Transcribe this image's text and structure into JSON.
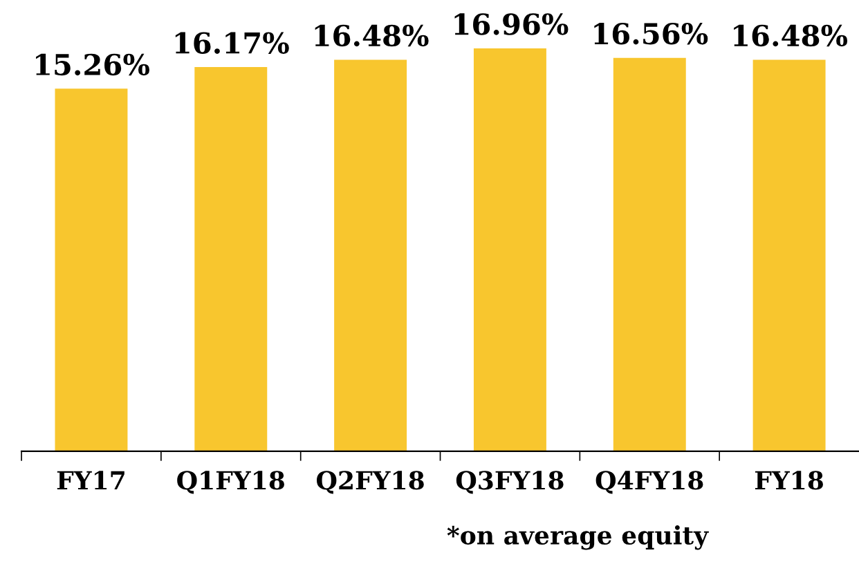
{
  "chart_data": {
    "type": "bar",
    "categories": [
      "FY17",
      "Q1FY18",
      "Q2FY18",
      "Q3FY18",
      "Q4FY18",
      "FY18"
    ],
    "values": [
      15.26,
      16.17,
      16.48,
      16.96,
      16.56,
      16.48
    ],
    "value_labels": [
      "15.26%",
      "16.17%",
      "16.48%",
      "16.96%",
      "16.56%",
      "16.48%"
    ],
    "color": "#f8c62e",
    "tick_labels": "x",
    "grid": false,
    "legend": false,
    "annotations": [
      "*on average equity"
    ]
  }
}
